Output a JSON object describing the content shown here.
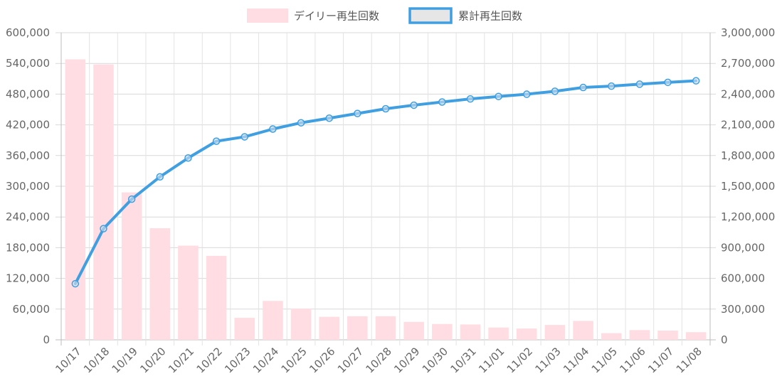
{
  "chart_data": {
    "type": "bar",
    "categories": [
      "10/17",
      "10/18",
      "10/19",
      "10/20",
      "10/21",
      "10/22",
      "10/23",
      "10/24",
      "10/25",
      "10/26",
      "10/27",
      "10/28",
      "10/29",
      "10/30",
      "10/31",
      "11/01",
      "11/02",
      "11/03",
      "11/04",
      "11/05",
      "11/06",
      "11/07",
      "11/08"
    ],
    "series": [
      {
        "name": "デイリー再生回数",
        "type": "bar",
        "axis": "left",
        "color": "#ffdde3",
        "values": [
          548000,
          538000,
          288000,
          218000,
          184000,
          164000,
          43000,
          76000,
          61000,
          45000,
          46000,
          46000,
          35000,
          31000,
          30000,
          24000,
          22000,
          29000,
          37000,
          13000,
          19000,
          18000,
          15000
        ]
      },
      {
        "name": "累計再生回数",
        "type": "line",
        "axis": "right",
        "color": "#3f9fe0",
        "values": [
          548000,
          1086000,
          1374000,
          1592000,
          1776000,
          1940000,
          1983000,
          2059000,
          2120000,
          2165000,
          2211000,
          2257000,
          2292000,
          2323000,
          2353000,
          2377000,
          2399000,
          2428000,
          2465000,
          2478000,
          2497000,
          2515000,
          2530000
        ]
      }
    ],
    "y_left": {
      "min": 0,
      "max": 600000,
      "step": 60000
    },
    "y_right": {
      "min": 0,
      "max": 3000000,
      "step": 300000
    },
    "grid": true,
    "legend_position": "top"
  }
}
